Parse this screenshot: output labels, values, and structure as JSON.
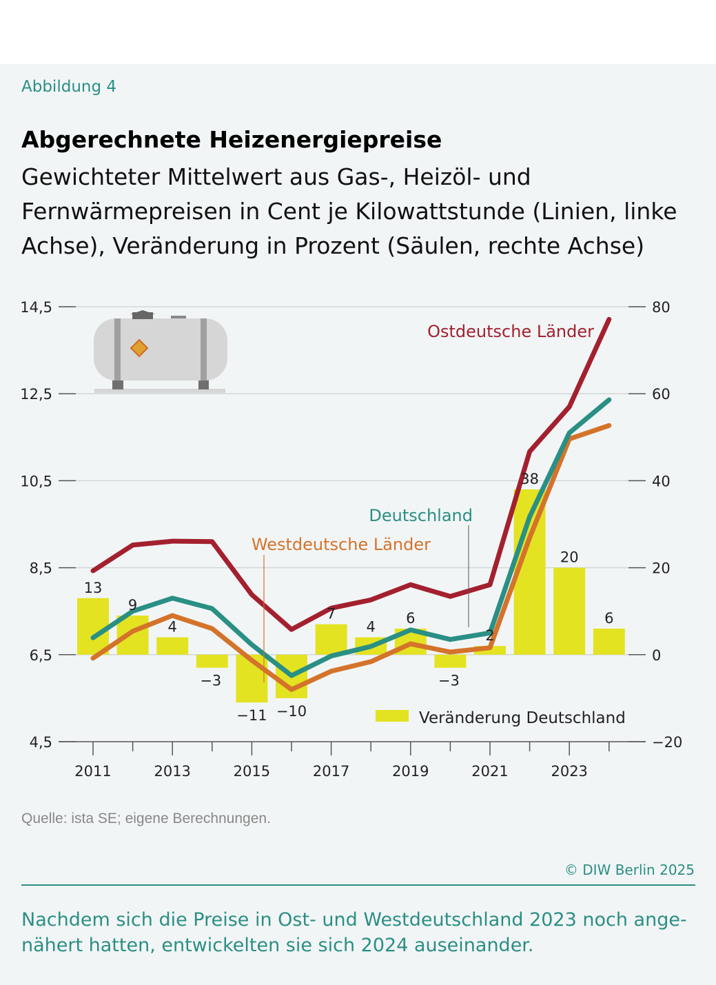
{
  "figure_label": "Abbildung 4",
  "title": "Abgerechnete Heizenergiepreise",
  "subtitle": "Gewichteter Mittelwert aus Gas-, Heizöl- und Fernwärmepreisen in Cent je Kilowattstunde (Linien, linke Achse), Veränderung in Prozent (Säulen, rechte Achse)",
  "source": "Quelle: ista SE; eigene Berechnungen.",
  "copyright": "© DIW Berlin 2025",
  "caption": "Nachdem sich die Preise in Ost- und Westdeutschland 2023 noch ange-nähert hatten, entwickelten sie sich 2024 auseinander.",
  "icon": "heating-oil-tank-icon",
  "chart_data": {
    "type": "line+bar",
    "x": [
      2011,
      2012,
      2013,
      2014,
      2015,
      2016,
      2017,
      2018,
      2019,
      2020,
      2021,
      2022,
      2023,
      2024
    ],
    "x_tick_labels": [
      "2011",
      "2013",
      "2015",
      "2017",
      "2019",
      "2021",
      "2023"
    ],
    "y_left": {
      "range": [
        4.5,
        14.5
      ],
      "ticks": [
        "4,5",
        "6,5",
        "8,5",
        "10,5",
        "12,5",
        "14,5"
      ]
    },
    "y_right": {
      "range": [
        -20,
        80
      ],
      "ticks": [
        "−20",
        "0",
        "20",
        "40",
        "60",
        "80"
      ]
    },
    "grid": true,
    "series": [
      {
        "name": "Ostdeutsche Länder",
        "axis": "left",
        "type": "line",
        "color": "#a3202f",
        "values": [
          8.43,
          9.02,
          9.11,
          9.1,
          7.88,
          7.08,
          7.57,
          7.76,
          8.11,
          7.84,
          8.11,
          11.17,
          12.2,
          14.21
        ]
      },
      {
        "name": "Deutschland",
        "axis": "left",
        "type": "line",
        "color": "#2a8f84",
        "values": [
          6.89,
          7.5,
          7.8,
          7.56,
          6.73,
          6.02,
          6.47,
          6.69,
          7.07,
          6.85,
          7.0,
          9.67,
          11.6,
          12.36
        ]
      },
      {
        "name": "Westdeutsche Länder",
        "axis": "left",
        "type": "line",
        "color": "#d4732a",
        "values": [
          6.42,
          7.04,
          7.4,
          7.1,
          6.37,
          5.7,
          6.12,
          6.34,
          6.75,
          6.56,
          6.66,
          9.19,
          11.46,
          11.77
        ]
      },
      {
        "name": "Veränderung Deutschland",
        "axis": "right",
        "type": "bar",
        "color": "#e3e322",
        "values": [
          13,
          9,
          4,
          -3,
          -11,
          -10,
          7,
          4,
          6,
          -3,
          2,
          38,
          20,
          6
        ],
        "labels": [
          "13",
          "9",
          "4",
          "−3",
          "−11",
          "−10",
          "7",
          "4",
          "6",
          "−3",
          "2",
          "38",
          "20",
          "6"
        ]
      }
    ]
  }
}
